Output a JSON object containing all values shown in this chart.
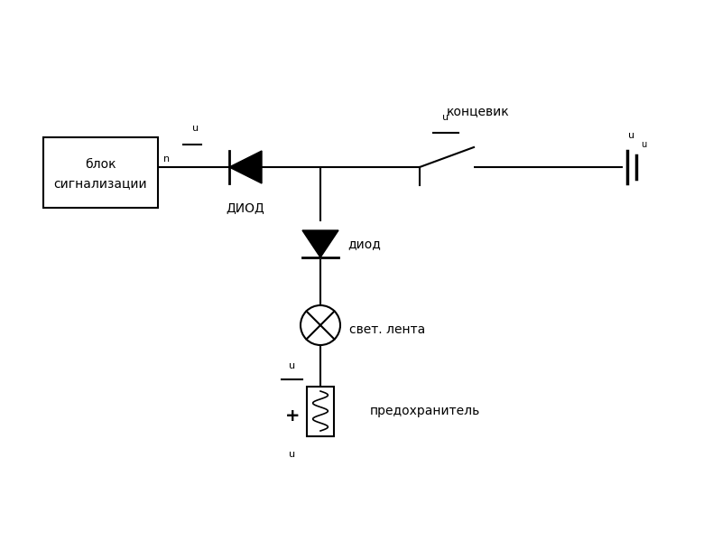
{
  "bg_color": "#ffffff",
  "line_color": "#000000",
  "figsize": [
    8.0,
    6.0
  ],
  "dpi": 100,
  "box_label1": "блок",
  "box_label2": "сигнализации",
  "diod1_label": "ДИОД",
  "koncevic_label": "концевик",
  "diod2_label": "диод",
  "lamp_label": "свет. лента",
  "fuse_label": "предохранитель",
  "label_u1": "u",
  "label_n1": "n",
  "label_u2": "u",
  "label_u3": "u",
  "label_u4": "u",
  "label_u5": "u",
  "label_plus": "+",
  "lw": 1.5
}
